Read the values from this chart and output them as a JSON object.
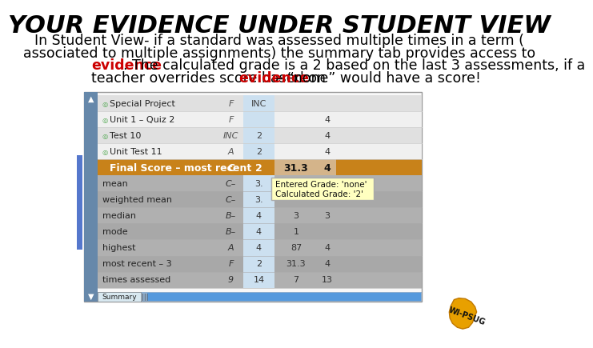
{
  "title": "YOUR EVIDENCE UNDER STUDENT VIEW",
  "title_fontsize": 22,
  "background_color": "#ffffff",
  "line1": "In Student View- if a standard was assessed multiple times in a term (",
  "line2": "associated to multiple assignments) the summary tab provides access to",
  "line3_red": "evidence",
  "line3_rest": ". The calculated grade is a 2 based on the last 3 assessments, if a",
  "line4_pre": "teacher overrides score based on ",
  "line4_red": "evidence",
  "line4_post": " – “none” would have a score!",
  "body_fontsize": 12.5,
  "rows": [
    {
      "label": "Special Project",
      "grade": "F",
      "col2": "INC",
      "col3": "",
      "col4": "",
      "bg": "#e0e0e0"
    },
    {
      "label": "Unit 1 – Quiz 2",
      "grade": "F",
      "col2": "",
      "col3": "",
      "col4": "4",
      "bg": "#f0f0f0"
    },
    {
      "label": "Test 10",
      "grade": "INC",
      "col2": "2",
      "col3": "",
      "col4": "4",
      "bg": "#e0e0e0"
    },
    {
      "label": "Unit Test 11",
      "grade": "A",
      "col2": "2",
      "col3": "",
      "col4": "4",
      "bg": "#f0f0f0"
    }
  ],
  "final_row": {
    "label": "Final Score – most recent",
    "grade": "C",
    "col2": "2",
    "col3": "31.3",
    "col4": "4"
  },
  "final_bg": "#c8821a",
  "final_col3_bg": "#d4b48a",
  "stat_rows": [
    {
      "label": "mean",
      "grade": "C–",
      "col2": "3.",
      "col3": "",
      "col4": "",
      "bg": "#b0b0b0"
    },
    {
      "label": "weighted mean",
      "grade": "C–",
      "col2": "3.",
      "col3": "",
      "col4": "",
      "bg": "#a8a8a8"
    },
    {
      "label": "median",
      "grade": "B–",
      "col2": "4",
      "col3": "3",
      "col4": "3",
      "bg": "#b0b0b0"
    },
    {
      "label": "mode",
      "grade": "B–",
      "col2": "4",
      "col3": "1",
      "col4": "",
      "bg": "#a8a8a8"
    },
    {
      "label": "highest",
      "grade": "A",
      "col2": "4",
      "col3": "87",
      "col4": "4",
      "bg": "#b0b0b0"
    },
    {
      "label": "most recent – 3",
      "grade": "F",
      "col2": "2",
      "col3": "31.3",
      "col4": "4",
      "bg": "#a8a8a8"
    },
    {
      "label": "times assessed",
      "grade": "9",
      "col2": "14",
      "col3": "7",
      "col4": "13",
      "bg": "#b0b0b0"
    }
  ],
  "col_highlight": "#cce0f0",
  "tooltip_line1": "Entered Grade: 'none'",
  "tooltip_line2": "Calculated Grade: '2'",
  "sidebar_color": "#6688aa",
  "left_scroll_color": "#5577cc",
  "tab_bg": "#90b0d0",
  "tab_label": "Summary",
  "logo_color": "#e8a000",
  "logo_text": "WI-PSUG"
}
